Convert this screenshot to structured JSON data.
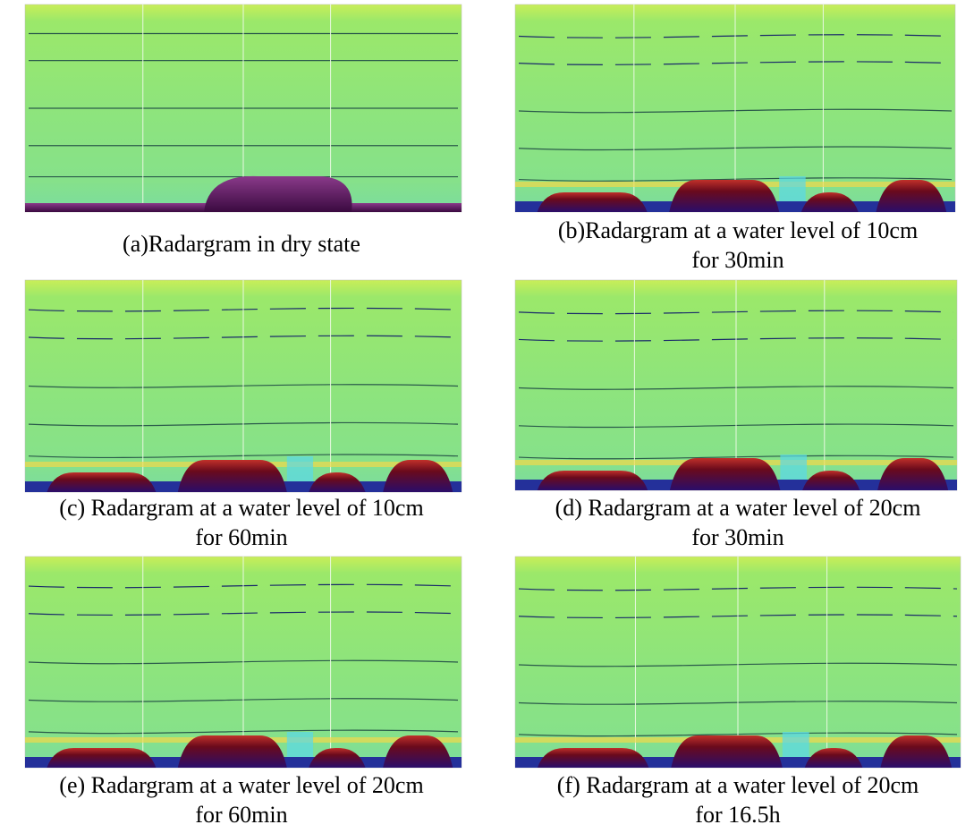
{
  "figure": {
    "panels": [
      {
        "caption": [
          "(a)Radargram in dry state"
        ]
      },
      {
        "caption": [
          "(b)Radargram at a water level of 10cm",
          "for 30min"
        ]
      },
      {
        "caption": [
          "(c) Radargram at a water level of 10cm",
          "for 60min"
        ]
      },
      {
        "caption": [
          "(d) Radargram at a water level of 20cm",
          "for 30min"
        ]
      },
      {
        "caption": [
          "(e) Radargram at a water level of 20cm",
          "for 60min"
        ]
      },
      {
        "caption": [
          "(f) Radargram at a water level of 20cm",
          "for 16.5h"
        ]
      }
    ]
  }
}
